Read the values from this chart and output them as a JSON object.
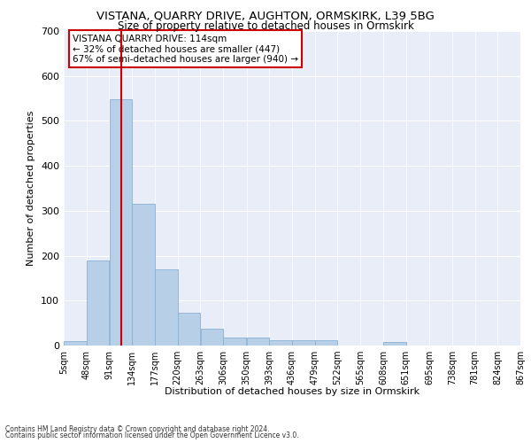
{
  "title": "VISTANA, QUARRY DRIVE, AUGHTON, ORMSKIRK, L39 5BG",
  "subtitle": "Size of property relative to detached houses in Ormskirk",
  "xlabel": "Distribution of detached houses by size in Ormskirk",
  "ylabel": "Number of detached properties",
  "bin_edges": [
    5,
    48,
    91,
    134,
    177,
    220,
    263,
    306,
    350,
    393,
    436,
    479,
    522,
    565,
    608,
    651,
    695,
    738,
    781,
    824,
    867
  ],
  "bar_heights": [
    10,
    190,
    548,
    315,
    170,
    72,
    38,
    17,
    17,
    12,
    12,
    12,
    0,
    0,
    8,
    0,
    0,
    0,
    0,
    0
  ],
  "bar_color": "#b8cfe8",
  "bar_edge_color": "#8ab0d4",
  "vline_x": 114,
  "vline_color": "#cc0000",
  "annotation_text": "VISTANA QUARRY DRIVE: 114sqm\n← 32% of detached houses are smaller (447)\n67% of semi-detached houses are larger (940) →",
  "annotation_box_color": "#ffffff",
  "annotation_box_edge": "#cc0000",
  "ylim": [
    0,
    700
  ],
  "yticks": [
    0,
    100,
    200,
    300,
    400,
    500,
    600,
    700
  ],
  "bg_color": "#e8edf8",
  "footer1": "Contains HM Land Registry data © Crown copyright and database right 2024.",
  "footer2": "Contains public sector information licensed under the Open Government Licence v3.0."
}
